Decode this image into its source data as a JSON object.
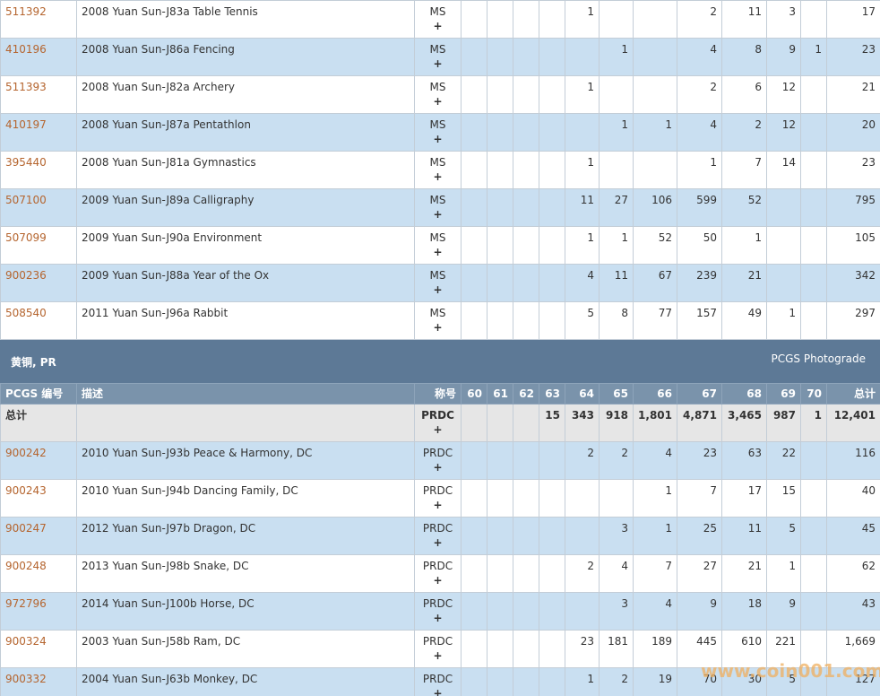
{
  "section1": {
    "rows": [
      {
        "id": "511392",
        "desc": "2008 Yuan Sun-J83a Table Tennis",
        "des": "MS",
        "plus": "+",
        "grades": [
          null,
          null,
          null,
          null,
          "1",
          null,
          null,
          "2",
          "11",
          "3",
          null
        ],
        "total": "17"
      },
      {
        "id": "410196",
        "desc": "2008 Yuan Sun-J86a Fencing",
        "des": "MS",
        "plus": "+",
        "grades": [
          null,
          null,
          null,
          null,
          null,
          "1",
          null,
          "4",
          "8",
          "9",
          "1"
        ],
        "total": "23"
      },
      {
        "id": "511393",
        "desc": "2008 Yuan Sun-J82a Archery",
        "des": "MS",
        "plus": "+",
        "grades": [
          null,
          null,
          null,
          null,
          "1",
          null,
          null,
          "2",
          "6",
          "12",
          null
        ],
        "total": "21"
      },
      {
        "id": "410197",
        "desc": "2008 Yuan Sun-J87a Pentathlon",
        "des": "MS",
        "plus": "+",
        "grades": [
          null,
          null,
          null,
          null,
          null,
          "1",
          "1",
          "4",
          "2",
          "12",
          null
        ],
        "total": "20"
      },
      {
        "id": "395440",
        "desc": "2008 Yuan Sun-J81a Gymnastics",
        "des": "MS",
        "plus": "+",
        "grades": [
          null,
          null,
          null,
          null,
          "1",
          null,
          null,
          "1",
          "7",
          "14",
          null
        ],
        "total": "23"
      },
      {
        "id": "507100",
        "desc": "2009 Yuan Sun-J89a Calligraphy",
        "des": "MS",
        "plus": "+",
        "grades": [
          null,
          null,
          null,
          null,
          "11",
          "27",
          "106",
          "599",
          "52",
          null,
          null
        ],
        "total": "795"
      },
      {
        "id": "507099",
        "desc": "2009 Yuan Sun-J90a Environment",
        "des": "MS",
        "plus": "+",
        "grades": [
          null,
          null,
          null,
          null,
          "1",
          "1",
          "52",
          "50",
          "1",
          null,
          null
        ],
        "total": "105"
      },
      {
        "id": "900236",
        "desc": "2009 Yuan Sun-J88a Year of the Ox",
        "des": "MS",
        "plus": "+",
        "grades": [
          null,
          null,
          null,
          null,
          "4",
          "11",
          "67",
          "239",
          "21",
          null,
          null
        ],
        "total": "342"
      },
      {
        "id": "508540",
        "desc": "2011 Yuan Sun-J96a Rabbit",
        "des": "MS",
        "plus": "+",
        "grades": [
          null,
          null,
          null,
          null,
          "5",
          "8",
          "77",
          "157",
          "49",
          "1",
          null
        ],
        "total": "297"
      }
    ]
  },
  "section2": {
    "title": "黄铜, PR",
    "photograde": "PCGS Photograde",
    "header": {
      "id": "PCGS 编号",
      "desc": "描述",
      "des": "称号",
      "grades": [
        "60",
        "61",
        "62",
        "63",
        "64",
        "65",
        "66",
        "67",
        "68",
        "69",
        "70"
      ],
      "total": "总计"
    },
    "totals": {
      "label": "总计",
      "des": "PRDC",
      "plus": "+",
      "grades": [
        null,
        null,
        null,
        "15",
        "343",
        "918",
        "1,801",
        "4,871",
        "3,465",
        "987",
        "1"
      ],
      "total": "12,401"
    },
    "rows": [
      {
        "id": "900242",
        "desc": "2010 Yuan Sun-J93b Peace & Harmony, DC",
        "des": "PRDC",
        "plus": "+",
        "grades": [
          null,
          null,
          null,
          null,
          "2",
          "2",
          "4",
          "23",
          "63",
          "22",
          null
        ],
        "total": "116"
      },
      {
        "id": "900243",
        "desc": "2010 Yuan Sun-J94b Dancing Family, DC",
        "des": "PRDC",
        "plus": "+",
        "grades": [
          null,
          null,
          null,
          null,
          null,
          null,
          "1",
          "7",
          "17",
          "15",
          null
        ],
        "total": "40"
      },
      {
        "id": "900247",
        "desc": "2012 Yuan Sun-J97b Dragon, DC",
        "des": "PRDC",
        "plus": "+",
        "grades": [
          null,
          null,
          null,
          null,
          null,
          "3",
          "1",
          "25",
          "11",
          "5",
          null
        ],
        "total": "45"
      },
      {
        "id": "900248",
        "desc": "2013 Yuan Sun-J98b Snake, DC",
        "des": "PRDC",
        "plus": "+",
        "grades": [
          null,
          null,
          null,
          null,
          "2",
          "4",
          "7",
          "27",
          "21",
          "1",
          null
        ],
        "total": "62"
      },
      {
        "id": "972796",
        "desc": "2014 Yuan Sun-J100b Horse, DC",
        "des": "PRDC",
        "plus": "+",
        "grades": [
          null,
          null,
          null,
          null,
          null,
          "3",
          "4",
          "9",
          "18",
          "9",
          null
        ],
        "total": "43"
      },
      {
        "id": "900324",
        "desc": "2003 Yuan Sun-J58b Ram, DC",
        "des": "PRDC",
        "plus": "+",
        "grades": [
          null,
          null,
          null,
          null,
          "23",
          "181",
          "189",
          "445",
          "610",
          "221",
          null
        ],
        "total": "1,669"
      },
      {
        "id": "900332",
        "desc": "2004 Yuan Sun-J63b Monkey, DC",
        "des": "PRDC",
        "plus": "+",
        "grades": [
          null,
          null,
          null,
          null,
          "1",
          "2",
          "19",
          "70",
          "30",
          "5",
          null
        ],
        "total": "127"
      }
    ]
  },
  "watermark": "www.coin001.com"
}
